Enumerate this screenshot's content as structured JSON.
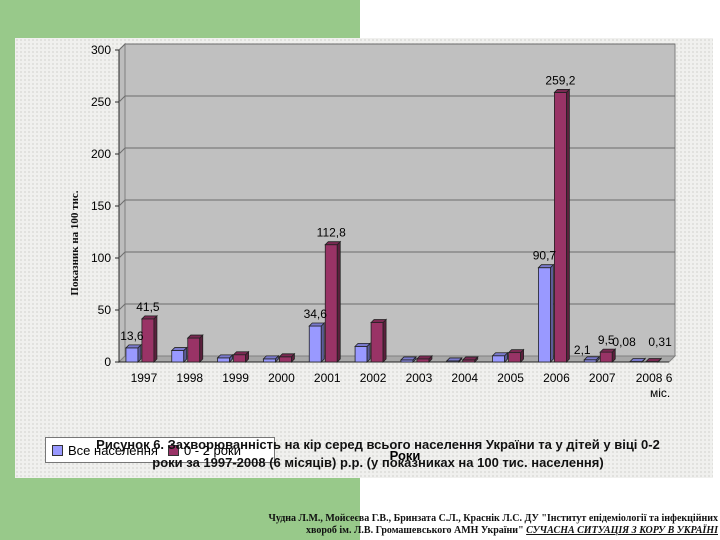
{
  "chart_data": {
    "type": "bar",
    "title": "",
    "xlabel": "Роки",
    "ylabel": "Показник на 100 тис.",
    "ylim": [
      0,
      300
    ],
    "yticks": [
      0,
      50,
      100,
      150,
      200,
      250,
      300
    ],
    "categories": [
      "1997",
      "1998",
      "1999",
      "2000",
      "2001",
      "2002",
      "2003",
      "2004",
      "2005",
      "2006",
      "2007",
      "2008 6 міс."
    ],
    "series": [
      {
        "name": "Все населення",
        "color": "#9999ff",
        "values": [
          13.6,
          11,
          4,
          3,
          34.6,
          15,
          2,
          1,
          6,
          90.7,
          2.1,
          0.08
        ],
        "labels": [
          "13,6",
          "",
          "",
          "",
          "34,6",
          "",
          "",
          "",
          "",
          "90,7",
          "2,1",
          "0,08"
        ]
      },
      {
        "name": "0 - 2 роки",
        "color": "#993366",
        "values": [
          41.5,
          23,
          7,
          5,
          112.8,
          38,
          3,
          2,
          9,
          259.2,
          9.5,
          0.31
        ],
        "labels": [
          "41,5",
          "",
          "",
          "",
          "112,8",
          "",
          "",
          "",
          "",
          "259,2",
          "9,5",
          "0,31"
        ]
      }
    ],
    "grid": true,
    "legend_placement": "bottom-left"
  },
  "caption_line1": "Рисунок 6. Захворюванність на кір серед всього населення України та у дітей у віці 0-2",
  "caption_line2": "роки за 1997-2008 (6 місяців) р.р. (у показниках на 100 тис. населення)",
  "source_line1": "Чудна Л.М., Мойсеєва Г.В., Бринзата С.Л., Краснік Л.С. ДУ \"Інститут епідеміології та інфекційних",
  "source_line2_main": "хвороб ім. Л.В. Громашевського АМН України\"",
  "source_line2_italic": "СУЧАСНА СИТУАЦІЯ З КОРУ В УКРАЇНІ"
}
